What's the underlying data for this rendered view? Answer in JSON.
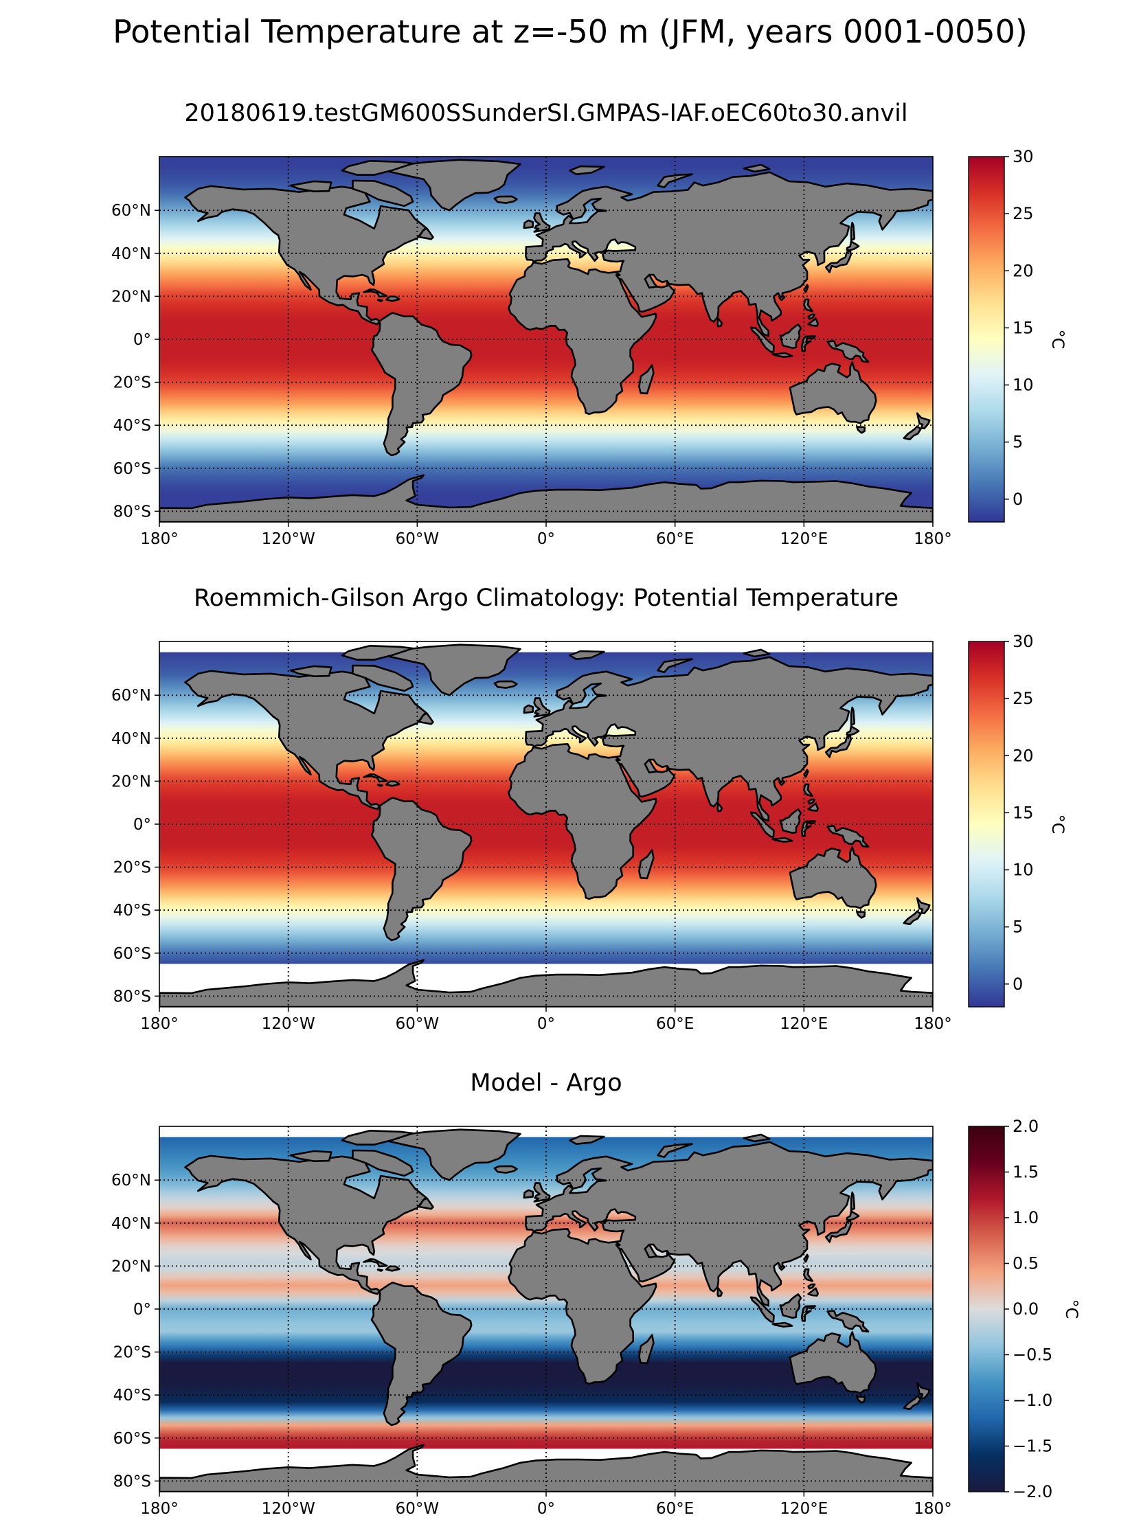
{
  "figure": {
    "title": "Potential Temperature at z=-50 m (JFM, years 0001-0050)"
  },
  "axes": {
    "lon_ticks": [
      "180°",
      "120°W",
      "60°W",
      "0°",
      "60°E",
      "120°E",
      "180°"
    ],
    "lat_ticks": [
      "60°N",
      "40°N",
      "20°N",
      "0°",
      "20°S",
      "40°S",
      "60°S",
      "80°S"
    ]
  },
  "chart_data": [
    {
      "type": "heatmap",
      "title": "20180619.testGM600SSunderSI.GMPAS-IAF.oEC60to30.anvil",
      "field": "model",
      "xlim": [
        -180,
        180
      ],
      "ylim": [
        -85,
        85
      ],
      "x_ticks": [
        -180,
        -120,
        -60,
        0,
        60,
        120,
        180
      ],
      "y_ticks": [
        60,
        40,
        20,
        0,
        -20,
        -40,
        -60,
        -80
      ],
      "grid": true,
      "land_color": "#808080",
      "missing_color": "#ffffff",
      "colorbar": {
        "label": "°C",
        "range": [
          -2,
          30
        ],
        "ticks": [
          30,
          25,
          20,
          15,
          10,
          5,
          0
        ],
        "tick_labels": [
          "30",
          "25",
          "20",
          "15",
          "10",
          "5",
          "0"
        ],
        "colormap": "RdYlBu_r",
        "colors": [
          "#313695",
          "#4575b4",
          "#74add1",
          "#abd9e9",
          "#e0f3f8",
          "#ffffbf",
          "#fee090",
          "#fdae61",
          "#f46d43",
          "#d73027",
          "#a50026"
        ]
      },
      "zonal_mean_profile": {
        "lat": [
          80,
          70,
          60,
          50,
          40,
          30,
          20,
          10,
          0,
          -10,
          -20,
          -30,
          -40,
          -50,
          -60,
          -70
        ],
        "value": [
          -1.5,
          0,
          4,
          9,
          15,
          21,
          26,
          28,
          28,
          28,
          26,
          21,
          14,
          7,
          1,
          -1.5
        ]
      }
    },
    {
      "type": "heatmap",
      "title": "Roemmich-Gilson Argo Climatology: Potential Temperature",
      "field": "observation",
      "xlim": [
        -180,
        180
      ],
      "ylim": [
        -85,
        85
      ],
      "x_ticks": [
        -180,
        -120,
        -60,
        0,
        60,
        120,
        180
      ],
      "y_ticks": [
        60,
        40,
        20,
        0,
        -20,
        -40,
        -60,
        -80
      ],
      "grid": true,
      "land_color": "#808080",
      "missing_color": "#ffffff",
      "data_lat_range": [
        -65,
        80
      ],
      "colorbar": {
        "label": "°C",
        "range": [
          -2,
          30
        ],
        "ticks": [
          30,
          25,
          20,
          15,
          10,
          5,
          0
        ],
        "tick_labels": [
          "30",
          "25",
          "20",
          "15",
          "10",
          "5",
          "0"
        ],
        "colormap": "RdYlBu_r",
        "colors": [
          "#313695",
          "#4575b4",
          "#74add1",
          "#abd9e9",
          "#e0f3f8",
          "#ffffbf",
          "#fee090",
          "#fdae61",
          "#f46d43",
          "#d73027",
          "#a50026"
        ]
      },
      "zonal_mean_profile": {
        "lat": [
          80,
          70,
          60,
          50,
          40,
          30,
          20,
          10,
          0,
          -10,
          -20,
          -30,
          -40,
          -50,
          -60,
          -65
        ],
        "value": [
          -1.5,
          0,
          4,
          9,
          15,
          21,
          26,
          28,
          28,
          28,
          26,
          21,
          14,
          7,
          1,
          -1
        ]
      }
    },
    {
      "type": "heatmap",
      "title": "Model - Argo",
      "field": "difference",
      "xlim": [
        -180,
        180
      ],
      "ylim": [
        -85,
        85
      ],
      "x_ticks": [
        -180,
        -120,
        -60,
        0,
        60,
        120,
        180
      ],
      "y_ticks": [
        60,
        40,
        20,
        0,
        -20,
        -40,
        -60,
        -80
      ],
      "grid": true,
      "land_color": "#808080",
      "missing_color": "#ffffff",
      "data_lat_range": [
        -65,
        80
      ],
      "colorbar": {
        "label": "°C",
        "range": [
          -2,
          2
        ],
        "ticks": [
          2,
          1.5,
          1,
          0.5,
          0,
          -0.5,
          -1,
          -1.5,
          -2
        ],
        "tick_labels": [
          "2.0",
          "1.5",
          "1.0",
          "0.5",
          "0.0",
          "−0.5",
          "−1.0",
          "−1.5",
          "−2.0"
        ],
        "colormap": "RdBu_r",
        "colors": [
          "#1a1a40",
          "#053061",
          "#2166ac",
          "#4393c3",
          "#92c5de",
          "#dcdcdc",
          "#f4a582",
          "#d6604d",
          "#b2182b",
          "#67001f",
          "#3b000f"
        ]
      },
      "zonal_mean_profile": {
        "lat": [
          80,
          60,
          45,
          40,
          30,
          20,
          10,
          0,
          -10,
          -20,
          -25,
          -35,
          -45,
          -55,
          -62
        ],
        "value": [
          -1.2,
          -0.6,
          0.2,
          0.8,
          0.1,
          -0.2,
          0.5,
          -0.6,
          -0.3,
          -1.3,
          -2,
          -2,
          -1.6,
          0.6,
          1.2
        ]
      }
    }
  ]
}
